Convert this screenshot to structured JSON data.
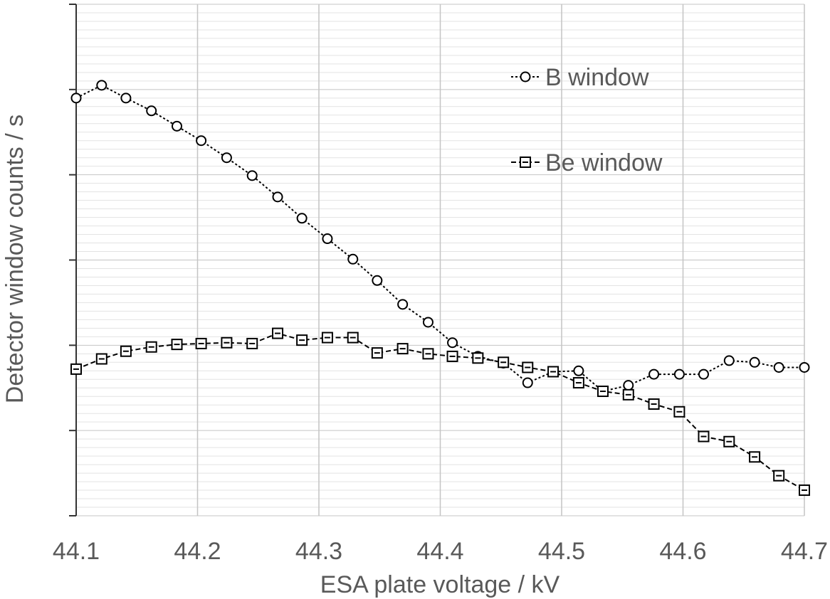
{
  "chart_data": {
    "type": "line",
    "title": "",
    "xlabel": "ESA plate voltage / kV",
    "ylabel": "Detector window counts / s",
    "xlim": [
      44.1,
      44.7
    ],
    "ylim": [
      0,
      6
    ],
    "x_ticks": [
      "44.1",
      "44.2",
      "44.3",
      "44.4",
      "44.5",
      "44.6",
      "44.7"
    ],
    "y_tick_labels_shown": false,
    "grid": "major vertical and horizontal, minor horizontal",
    "legend_position": "top-right",
    "series": [
      {
        "name": "B window",
        "marker": "circle",
        "line": "dotted",
        "x": [
          44.1,
          44.121,
          44.141,
          44.162,
          44.183,
          44.203,
          44.224,
          44.245,
          44.266,
          44.286,
          44.307,
          44.328,
          44.348,
          44.369,
          44.39,
          44.41,
          44.431,
          44.452,
          44.472,
          44.493,
          44.514,
          44.534,
          44.555,
          44.576,
          44.597,
          44.617,
          44.638,
          44.659,
          44.679,
          44.7
        ],
        "y": [
          4.9,
          5.05,
          4.9,
          4.75,
          4.57,
          4.4,
          4.2,
          3.99,
          3.74,
          3.49,
          3.25,
          3.01,
          2.76,
          2.48,
          2.27,
          2.03,
          1.87,
          1.79,
          1.56,
          1.69,
          1.7,
          1.46,
          1.53,
          1.66,
          1.66,
          1.66,
          1.82,
          1.8,
          1.74,
          1.74
        ]
      },
      {
        "name": "Be window",
        "marker": "square",
        "line": "dashed",
        "x": [
          44.1,
          44.121,
          44.141,
          44.162,
          44.183,
          44.203,
          44.224,
          44.245,
          44.266,
          44.286,
          44.307,
          44.328,
          44.348,
          44.369,
          44.39,
          44.41,
          44.431,
          44.452,
          44.472,
          44.493,
          44.514,
          44.534,
          44.555,
          44.576,
          44.597,
          44.617,
          44.638,
          44.659,
          44.679,
          44.7
        ],
        "y": [
          1.72,
          1.84,
          1.93,
          1.98,
          2.01,
          2.02,
          2.03,
          2.02,
          2.14,
          2.06,
          2.09,
          2.09,
          1.91,
          1.96,
          1.9,
          1.87,
          1.85,
          1.8,
          1.74,
          1.69,
          1.56,
          1.46,
          1.42,
          1.31,
          1.22,
          0.93,
          0.87,
          0.69,
          0.47,
          0.3
        ]
      }
    ]
  }
}
